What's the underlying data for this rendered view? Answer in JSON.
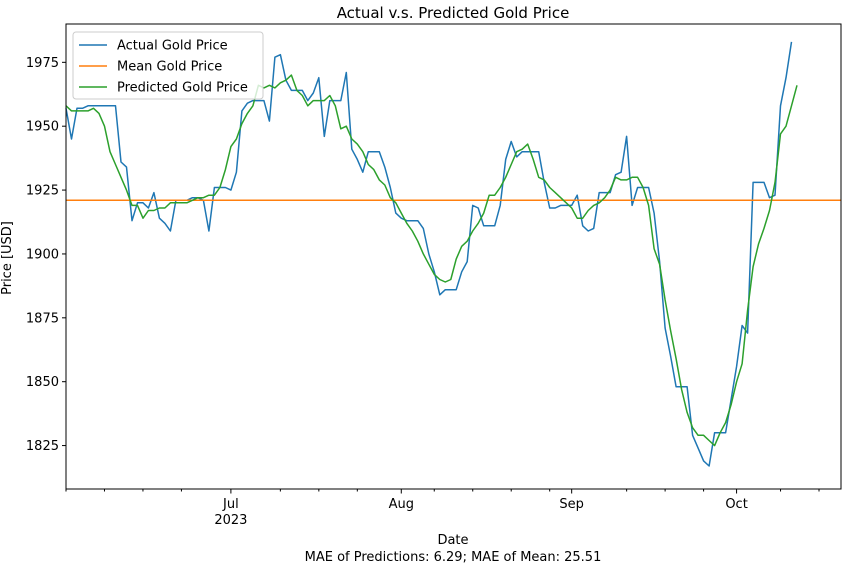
{
  "chart_data": {
    "type": "line",
    "title": "Actual v.s. Predicted Gold Price",
    "xlabel": "Date",
    "ylabel": "Price [USD]",
    "footer": "MAE of Predictions: 6.29; MAE of Mean: 25.51",
    "xlim": [
      "2023-06-01",
      "2023-10-20"
    ],
    "ylim": [
      1808,
      1990
    ],
    "y_ticks": [
      1825,
      1850,
      1875,
      1900,
      1925,
      1950,
      1975
    ],
    "x_major_ticks": [
      {
        "date": "2023-07-01",
        "label": "Jul",
        "sublabel": "2023"
      },
      {
        "date": "2023-08-01",
        "label": "Aug",
        "sublabel": ""
      },
      {
        "date": "2023-09-01",
        "label": "Sep",
        "sublabel": ""
      },
      {
        "date": "2023-10-01",
        "label": "Oct",
        "sublabel": ""
      }
    ],
    "x_minor_ticks": [
      "2023-06-01",
      "2023-06-08",
      "2023-06-15",
      "2023-06-22",
      "2023-07-10",
      "2023-07-17",
      "2023-07-24",
      "2023-08-07",
      "2023-08-14",
      "2023-08-21",
      "2023-08-28",
      "2023-09-11",
      "2023-09-18",
      "2023-09-25",
      "2023-10-09",
      "2023-10-16"
    ],
    "legend_position": "top-left",
    "grid": false,
    "series": [
      {
        "name": "Actual Gold Price",
        "color": "#1f77b4",
        "points": [
          [
            "2023-06-01",
            1957
          ],
          [
            "2023-06-02",
            1945
          ],
          [
            "2023-06-03",
            1957
          ],
          [
            "2023-06-04",
            1957
          ],
          [
            "2023-06-05",
            1958
          ],
          [
            "2023-06-06",
            1958
          ],
          [
            "2023-06-07",
            1958
          ],
          [
            "2023-06-08",
            1958
          ],
          [
            "2023-06-09",
            1958
          ],
          [
            "2023-06-10",
            1958
          ],
          [
            "2023-06-11",
            1936
          ],
          [
            "2023-06-12",
            1934
          ],
          [
            "2023-06-13",
            1913
          ],
          [
            "2023-06-14",
            1920
          ],
          [
            "2023-06-15",
            1920
          ],
          [
            "2023-06-16",
            1918
          ],
          [
            "2023-06-17",
            1924
          ],
          [
            "2023-06-18",
            1914
          ],
          [
            "2023-06-19",
            1912
          ],
          [
            "2023-06-20",
            1909
          ],
          [
            "2023-06-21",
            1921
          ],
          [
            "2023-06-22",
            1921
          ],
          [
            "2023-06-23",
            1921
          ],
          [
            "2023-06-24",
            1922
          ],
          [
            "2023-06-25",
            1922
          ],
          [
            "2023-06-26",
            1921
          ],
          [
            "2023-06-27",
            1909
          ],
          [
            "2023-06-28",
            1926
          ],
          [
            "2023-06-29",
            1926
          ],
          [
            "2023-06-30",
            1926
          ],
          [
            "2023-07-01",
            1925
          ],
          [
            "2023-07-02",
            1932
          ],
          [
            "2023-07-03",
            1956
          ],
          [
            "2023-07-04",
            1959
          ],
          [
            "2023-07-05",
            1960
          ],
          [
            "2023-07-06",
            1960
          ],
          [
            "2023-07-07",
            1960
          ],
          [
            "2023-07-08",
            1952
          ],
          [
            "2023-07-09",
            1977
          ],
          [
            "2023-07-10",
            1978
          ],
          [
            "2023-07-11",
            1968
          ],
          [
            "2023-07-12",
            1964
          ],
          [
            "2023-07-13",
            1964
          ],
          [
            "2023-07-14",
            1964
          ],
          [
            "2023-07-15",
            1960
          ],
          [
            "2023-07-16",
            1963
          ],
          [
            "2023-07-17",
            1969
          ],
          [
            "2023-07-18",
            1946
          ],
          [
            "2023-07-19",
            1960
          ],
          [
            "2023-07-20",
            1960
          ],
          [
            "2023-07-21",
            1960
          ],
          [
            "2023-07-22",
            1971
          ],
          [
            "2023-07-23",
            1941
          ],
          [
            "2023-07-24",
            1937
          ],
          [
            "2023-07-25",
            1932
          ],
          [
            "2023-07-26",
            1940
          ],
          [
            "2023-07-27",
            1940
          ],
          [
            "2023-07-28",
            1940
          ],
          [
            "2023-07-29",
            1934
          ],
          [
            "2023-07-30",
            1926
          ],
          [
            "2023-07-31",
            1916
          ],
          [
            "2023-08-01",
            1914
          ],
          [
            "2023-08-02",
            1913
          ],
          [
            "2023-08-03",
            1913
          ],
          [
            "2023-08-04",
            1913
          ],
          [
            "2023-08-05",
            1910
          ],
          [
            "2023-08-06",
            1900
          ],
          [
            "2023-08-07",
            1893
          ],
          [
            "2023-08-08",
            1884
          ],
          [
            "2023-08-09",
            1886
          ],
          [
            "2023-08-10",
            1886
          ],
          [
            "2023-08-11",
            1886
          ],
          [
            "2023-08-12",
            1893
          ],
          [
            "2023-08-13",
            1897
          ],
          [
            "2023-08-14",
            1919
          ],
          [
            "2023-08-15",
            1918
          ],
          [
            "2023-08-16",
            1911
          ],
          [
            "2023-08-17",
            1911
          ],
          [
            "2023-08-18",
            1911
          ],
          [
            "2023-08-19",
            1919
          ],
          [
            "2023-08-20",
            1937
          ],
          [
            "2023-08-21",
            1944
          ],
          [
            "2023-08-22",
            1938
          ],
          [
            "2023-08-23",
            1940
          ],
          [
            "2023-08-24",
            1940
          ],
          [
            "2023-08-25",
            1940
          ],
          [
            "2023-08-26",
            1940
          ],
          [
            "2023-08-27",
            1928
          ],
          [
            "2023-08-28",
            1918
          ],
          [
            "2023-08-29",
            1918
          ],
          [
            "2023-08-30",
            1919
          ],
          [
            "2023-08-31",
            1919
          ],
          [
            "2023-09-01",
            1919
          ],
          [
            "2023-09-02",
            1923
          ],
          [
            "2023-09-03",
            1911
          ],
          [
            "2023-09-04",
            1909
          ],
          [
            "2023-09-05",
            1910
          ],
          [
            "2023-09-06",
            1924
          ],
          [
            "2023-09-07",
            1924
          ],
          [
            "2023-09-08",
            1924
          ],
          [
            "2023-09-09",
            1931
          ],
          [
            "2023-09-10",
            1932
          ],
          [
            "2023-09-11",
            1946
          ],
          [
            "2023-09-12",
            1919
          ],
          [
            "2023-09-13",
            1926
          ],
          [
            "2023-09-14",
            1926
          ],
          [
            "2023-09-15",
            1926
          ],
          [
            "2023-09-16",
            1916
          ],
          [
            "2023-09-17",
            1897
          ],
          [
            "2023-09-18",
            1871
          ],
          [
            "2023-09-19",
            1860
          ],
          [
            "2023-09-20",
            1848
          ],
          [
            "2023-09-21",
            1848
          ],
          [
            "2023-09-22",
            1848
          ],
          [
            "2023-09-23",
            1829
          ],
          [
            "2023-09-24",
            1824
          ],
          [
            "2023-09-25",
            1819
          ],
          [
            "2023-09-26",
            1817
          ],
          [
            "2023-09-27",
            1830
          ],
          [
            "2023-09-28",
            1830
          ],
          [
            "2023-09-29",
            1830
          ],
          [
            "2023-09-30",
            1843
          ],
          [
            "2023-10-01",
            1856
          ],
          [
            "2023-10-02",
            1872
          ],
          [
            "2023-10-03",
            1869
          ],
          [
            "2023-10-04",
            1928
          ],
          [
            "2023-10-05",
            1928
          ],
          [
            "2023-10-06",
            1928
          ],
          [
            "2023-10-07",
            1922
          ],
          [
            "2023-10-08",
            1923
          ],
          [
            "2023-10-09",
            1958
          ],
          [
            "2023-10-10",
            1969
          ],
          [
            "2023-10-11",
            1983
          ]
        ]
      },
      {
        "name": "Mean Gold Price",
        "color": "#ff7f0e",
        "points": [
          [
            "2023-06-01",
            1921
          ],
          [
            "2023-10-20",
            1921
          ]
        ]
      },
      {
        "name": "Predicted Gold Price",
        "color": "#2ca02c",
        "points": [
          [
            "2023-06-01",
            1958
          ],
          [
            "2023-06-02",
            1956
          ],
          [
            "2023-06-03",
            1956
          ],
          [
            "2023-06-04",
            1956
          ],
          [
            "2023-06-05",
            1956
          ],
          [
            "2023-06-06",
            1957
          ],
          [
            "2023-06-07",
            1955
          ],
          [
            "2023-06-08",
            1950
          ],
          [
            "2023-06-09",
            1940
          ],
          [
            "2023-06-10",
            1935
          ],
          [
            "2023-06-11",
            1930
          ],
          [
            "2023-06-12",
            1925
          ],
          [
            "2023-06-13",
            1919
          ],
          [
            "2023-06-14",
            1919
          ],
          [
            "2023-06-15",
            1914
          ],
          [
            "2023-06-16",
            1917
          ],
          [
            "2023-06-17",
            1917
          ],
          [
            "2023-06-18",
            1918
          ],
          [
            "2023-06-19",
            1918
          ],
          [
            "2023-06-20",
            1920
          ],
          [
            "2023-06-21",
            1920
          ],
          [
            "2023-06-22",
            1920
          ],
          [
            "2023-06-23",
            1920
          ],
          [
            "2023-06-24",
            1921
          ],
          [
            "2023-06-25",
            1922
          ],
          [
            "2023-06-26",
            1922
          ],
          [
            "2023-06-27",
            1923
          ],
          [
            "2023-06-28",
            1923
          ],
          [
            "2023-06-29",
            1926
          ],
          [
            "2023-06-30",
            1933
          ],
          [
            "2023-07-01",
            1942
          ],
          [
            "2023-07-02",
            1945
          ],
          [
            "2023-07-03",
            1951
          ],
          [
            "2023-07-04",
            1955
          ],
          [
            "2023-07-05",
            1958
          ],
          [
            "2023-07-06",
            1966
          ],
          [
            "2023-07-07",
            1965
          ],
          [
            "2023-07-08",
            1966
          ],
          [
            "2023-07-09",
            1965
          ],
          [
            "2023-07-10",
            1967
          ],
          [
            "2023-07-11",
            1968
          ],
          [
            "2023-07-12",
            1970
          ],
          [
            "2023-07-13",
            1964
          ],
          [
            "2023-07-14",
            1962
          ],
          [
            "2023-07-15",
            1958
          ],
          [
            "2023-07-16",
            1960
          ],
          [
            "2023-07-17",
            1960
          ],
          [
            "2023-07-18",
            1960
          ],
          [
            "2023-07-19",
            1962
          ],
          [
            "2023-07-20",
            1958
          ],
          [
            "2023-07-21",
            1949
          ],
          [
            "2023-07-22",
            1950
          ],
          [
            "2023-07-23",
            1945
          ],
          [
            "2023-07-24",
            1943
          ],
          [
            "2023-07-25",
            1940
          ],
          [
            "2023-07-26",
            1935
          ],
          [
            "2023-07-27",
            1933
          ],
          [
            "2023-07-28",
            1929
          ],
          [
            "2023-07-29",
            1927
          ],
          [
            "2023-07-30",
            1922
          ],
          [
            "2023-07-31",
            1920
          ],
          [
            "2023-08-01",
            1916
          ],
          [
            "2023-08-02",
            1912
          ],
          [
            "2023-08-03",
            1909
          ],
          [
            "2023-08-04",
            1905
          ],
          [
            "2023-08-05",
            1900
          ],
          [
            "2023-08-06",
            1896
          ],
          [
            "2023-08-07",
            1892
          ],
          [
            "2023-08-08",
            1890
          ],
          [
            "2023-08-09",
            1889
          ],
          [
            "2023-08-10",
            1890
          ],
          [
            "2023-08-11",
            1898
          ],
          [
            "2023-08-12",
            1903
          ],
          [
            "2023-08-13",
            1905
          ],
          [
            "2023-08-14",
            1909
          ],
          [
            "2023-08-15",
            1912
          ],
          [
            "2023-08-16",
            1916
          ],
          [
            "2023-08-17",
            1923
          ],
          [
            "2023-08-18",
            1923
          ],
          [
            "2023-08-19",
            1926
          ],
          [
            "2023-08-20",
            1930
          ],
          [
            "2023-08-21",
            1935
          ],
          [
            "2023-08-22",
            1940
          ],
          [
            "2023-08-23",
            1941
          ],
          [
            "2023-08-24",
            1943
          ],
          [
            "2023-08-25",
            1937
          ],
          [
            "2023-08-26",
            1930
          ],
          [
            "2023-08-27",
            1929
          ],
          [
            "2023-08-28",
            1926
          ],
          [
            "2023-08-29",
            1924
          ],
          [
            "2023-08-30",
            1922
          ],
          [
            "2023-08-31",
            1920
          ],
          [
            "2023-09-01",
            1918
          ],
          [
            "2023-09-02",
            1914
          ],
          [
            "2023-09-03",
            1914
          ],
          [
            "2023-09-04",
            1917
          ],
          [
            "2023-09-05",
            1919
          ],
          [
            "2023-09-06",
            1920
          ],
          [
            "2023-09-07",
            1922
          ],
          [
            "2023-09-08",
            1925
          ],
          [
            "2023-09-09",
            1930
          ],
          [
            "2023-09-10",
            1929
          ],
          [
            "2023-09-11",
            1929
          ],
          [
            "2023-09-12",
            1930
          ],
          [
            "2023-09-13",
            1930
          ],
          [
            "2023-09-14",
            1926
          ],
          [
            "2023-09-15",
            1919
          ],
          [
            "2023-09-16",
            1902
          ],
          [
            "2023-09-17",
            1896
          ],
          [
            "2023-09-18",
            1882
          ],
          [
            "2023-09-19",
            1870
          ],
          [
            "2023-09-20",
            1859
          ],
          [
            "2023-09-21",
            1847
          ],
          [
            "2023-09-22",
            1838
          ],
          [
            "2023-09-23",
            1832
          ],
          [
            "2023-09-24",
            1829
          ],
          [
            "2023-09-25",
            1829
          ],
          [
            "2023-09-26",
            1827
          ],
          [
            "2023-09-27",
            1825
          ],
          [
            "2023-09-28",
            1830
          ],
          [
            "2023-09-29",
            1834
          ],
          [
            "2023-09-30",
            1841
          ],
          [
            "2023-10-01",
            1850
          ],
          [
            "2023-10-02",
            1857
          ],
          [
            "2023-10-03",
            1878
          ],
          [
            "2023-10-04",
            1895
          ],
          [
            "2023-10-05",
            1904
          ],
          [
            "2023-10-06",
            1910
          ],
          [
            "2023-10-07",
            1917
          ],
          [
            "2023-10-08",
            1928
          ],
          [
            "2023-10-09",
            1947
          ],
          [
            "2023-10-10",
            1950
          ],
          [
            "2023-10-11",
            1958
          ],
          [
            "2023-10-12",
            1966
          ]
        ]
      }
    ]
  }
}
